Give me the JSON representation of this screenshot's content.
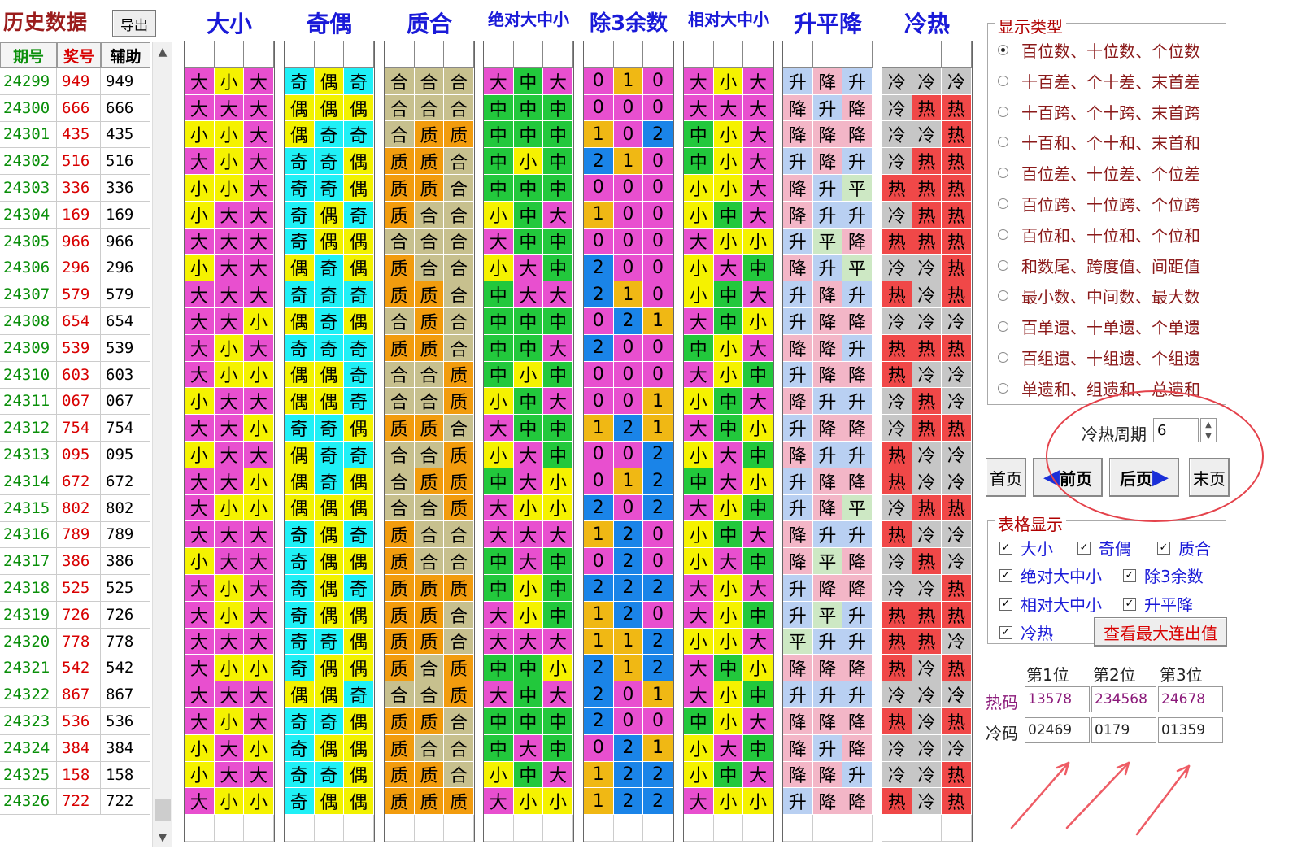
{
  "left": {
    "title": "历史数据",
    "export_label": "导出",
    "headers": {
      "period": "期号",
      "award": "奖号",
      "aux": "辅助"
    },
    "rows": [
      {
        "period": "24299",
        "award": "949",
        "aux": "949"
      },
      {
        "period": "24300",
        "award": "666",
        "aux": "666"
      },
      {
        "period": "24301",
        "award": "435",
        "aux": "435"
      },
      {
        "period": "24302",
        "award": "516",
        "aux": "516"
      },
      {
        "period": "24303",
        "award": "336",
        "aux": "336"
      },
      {
        "period": "24304",
        "award": "169",
        "aux": "169"
      },
      {
        "period": "24305",
        "award": "966",
        "aux": "966"
      },
      {
        "period": "24306",
        "award": "296",
        "aux": "296"
      },
      {
        "period": "24307",
        "award": "579",
        "aux": "579"
      },
      {
        "period": "24308",
        "award": "654",
        "aux": "654"
      },
      {
        "period": "24309",
        "award": "539",
        "aux": "539"
      },
      {
        "period": "24310",
        "award": "603",
        "aux": "603"
      },
      {
        "period": "24311",
        "award": "067",
        "aux": "067"
      },
      {
        "period": "24312",
        "award": "754",
        "aux": "754"
      },
      {
        "period": "24313",
        "award": "095",
        "aux": "095"
      },
      {
        "period": "24314",
        "award": "672",
        "aux": "672"
      },
      {
        "period": "24315",
        "award": "802",
        "aux": "802"
      },
      {
        "period": "24316",
        "award": "789",
        "aux": "789"
      },
      {
        "period": "24317",
        "award": "386",
        "aux": "386"
      },
      {
        "period": "24318",
        "award": "525",
        "aux": "525"
      },
      {
        "period": "24319",
        "award": "726",
        "aux": "726"
      },
      {
        "period": "24320",
        "award": "778",
        "aux": "778"
      },
      {
        "period": "24321",
        "award": "542",
        "aux": "542"
      },
      {
        "period": "24322",
        "award": "867",
        "aux": "867"
      },
      {
        "period": "24323",
        "award": "536",
        "aux": "536"
      },
      {
        "period": "24324",
        "award": "384",
        "aux": "384"
      },
      {
        "period": "24325",
        "award": "158",
        "aux": "158"
      },
      {
        "period": "24326",
        "award": "722",
        "aux": "722"
      }
    ]
  },
  "colors": {
    "大": "#e84fcf",
    "小": "#f5f200",
    "中": "#22c83c",
    "奇": "#1ff0f6",
    "偶": "#f2f200",
    "合": "#c7c08e",
    "质": "#f29c0e",
    "0": "#e84fcf",
    "1": "#f0b814",
    "2": "#1a84e8",
    "升": "#b9d0f2",
    "降": "#f3b6c7",
    "平": "#cde8c4",
    "冷": "#c6c6c6",
    "热": "#f04848"
  },
  "groups": [
    {
      "key": "size",
      "title": "大小",
      "title_size": 28,
      "rows": [
        "大小大",
        "大大大",
        "小小大",
        "大小大",
        "小小大",
        "小大大",
        "大大大",
        "小大大",
        "大大大",
        "大大小",
        "大小大",
        "大小小",
        "小大大",
        "大大小",
        "小大大",
        "大大小",
        "大小小",
        "大大大",
        "小大大",
        "大小大",
        "大小大",
        "大大大",
        "大小小",
        "大大大",
        "大小大",
        "小大小",
        "小大大",
        "大小小"
      ]
    },
    {
      "key": "parity",
      "title": "奇偶",
      "title_size": 28,
      "rows": [
        "奇偶奇",
        "偶偶偶",
        "偶奇奇",
        "奇奇偶",
        "奇奇偶",
        "奇偶奇",
        "奇偶偶",
        "偶奇偶",
        "奇奇奇",
        "偶奇偶",
        "奇奇奇",
        "偶偶奇",
        "偶偶奇",
        "奇奇偶",
        "偶奇奇",
        "偶奇偶",
        "偶偶偶",
        "奇偶奇",
        "奇偶偶",
        "奇偶奇",
        "奇偶偶",
        "奇奇偶",
        "奇偶偶",
        "偶偶奇",
        "奇奇偶",
        "奇偶偶",
        "奇奇偶",
        "奇偶偶"
      ]
    },
    {
      "key": "prime",
      "title": "质合",
      "title_size": 28,
      "rows": [
        "合合合",
        "合合合",
        "合质质",
        "质质合",
        "质质合",
        "质合合",
        "合合合",
        "质合合",
        "质质合",
        "合质合",
        "质质合",
        "合合质",
        "合合质",
        "质质合",
        "合合质",
        "合质质",
        "合合质",
        "质合合",
        "质合合",
        "质质质",
        "质质合",
        "质质合",
        "质合质",
        "合合质",
        "质质合",
        "质合合",
        "质质合",
        "质质质"
      ]
    },
    {
      "key": "abs",
      "title": "绝对大中小",
      "title_size": 20,
      "rows": [
        "大中大",
        "中中中",
        "中中中",
        "中小中",
        "中中中",
        "小中大",
        "大中中",
        "小大中",
        "中大大",
        "中中中",
        "中中大",
        "中小中",
        "小中大",
        "大中中",
        "小大中",
        "中大小",
        "大小小",
        "大大大",
        "中大中",
        "中小中",
        "大小中",
        "大大大",
        "中中小",
        "大中大",
        "中中中",
        "中大中",
        "小中大",
        "大小小"
      ]
    },
    {
      "key": "mod3",
      "title": "除3余数",
      "title_size": 26,
      "rows": [
        "010",
        "000",
        "102",
        "210",
        "000",
        "100",
        "000",
        "200",
        "210",
        "021",
        "200",
        "000",
        "001",
        "121",
        "002",
        "012",
        "202",
        "120",
        "020",
        "222",
        "120",
        "112",
        "212",
        "201",
        "200",
        "021",
        "122",
        "122"
      ]
    },
    {
      "key": "rel",
      "title": "相对大中小",
      "title_size": 20,
      "rows": [
        "大小大",
        "大大大",
        "中小大",
        "中小大",
        "小小大",
        "小中大",
        "大小小",
        "小大中",
        "小中大",
        "大中小",
        "中小大",
        "大小中",
        "小中大",
        "大中小",
        "小大中",
        "中大小",
        "大小中",
        "小中大",
        "小大中",
        "大小大",
        "大小中",
        "小小大",
        "大中小",
        "大小中",
        "中小大",
        "小大中",
        "小中大",
        "大小小"
      ]
    },
    {
      "key": "trend",
      "title": "升平降",
      "title_size": 28,
      "rows": [
        "升降升",
        "降升降",
        "降降降",
        "升降升",
        "降升平",
        "降升升",
        "升平降",
        "降升平",
        "升降升",
        "升降降",
        "降降升",
        "升降降",
        "降升升",
        "升降降",
        "降升升",
        "升降降",
        "升降平",
        "降升升",
        "降平降",
        "升降降",
        "升平升",
        "平升升",
        "降降降",
        "升升升",
        "降降降",
        "降升降",
        "降降升",
        "升降降"
      ]
    },
    {
      "key": "hotcold",
      "title": "冷热",
      "title_size": 28,
      "rows": [
        "冷冷冷",
        "冷热热",
        "冷冷热",
        "冷热热",
        "热热热",
        "冷热热",
        "热热热",
        "冷冷热",
        "热冷热",
        "冷冷冷",
        "热热热",
        "热冷冷",
        "冷热冷",
        "冷热热",
        "热冷冷",
        "热冷冷",
        "冷热热",
        "热冷冷",
        "冷热冷",
        "冷冷热",
        "热热热",
        "热热冷",
        "热冷热",
        "冷冷冷",
        "热冷热",
        "冷冷冷",
        "冷冷热",
        "热冷热"
      ]
    }
  ],
  "right": {
    "display_type_title": "显示类型",
    "options": [
      "百位数、十位数、个位数",
      "十百差、个十差、末首差",
      "十百跨、个十跨、末首跨",
      "十百和、个十和、末首和",
      "百位差、十位差、个位差",
      "百位跨、十位跨、个位跨",
      "百位和、十位和、个位和",
      "和数尾、跨度值、间距值",
      "最小数、中间数、最大数",
      "百单遗、十单遗、个单遗",
      "百组遗、十组遗、个组遗",
      "单遗和、组遗和、总遗和"
    ],
    "selected_option": 0,
    "period_label": "冷热周期",
    "period_value": "6",
    "nav": {
      "first": "首页",
      "prev": "前页",
      "next": "后页",
      "last": "末页"
    },
    "table_display_title": "表格显示",
    "checks": [
      "大小",
      "奇偶",
      "质合",
      "绝对大中小",
      "除3余数",
      "相对大中小",
      "升平降",
      "冷热"
    ],
    "max_button": "查看最大连出值",
    "positions": [
      "第1位",
      "第2位",
      "第3位"
    ],
    "hot_label": "热码",
    "cold_label": "冷码",
    "hot_codes": [
      "13578",
      "234568",
      "24678"
    ],
    "cold_codes": [
      "02469",
      "0179",
      "01359"
    ]
  }
}
